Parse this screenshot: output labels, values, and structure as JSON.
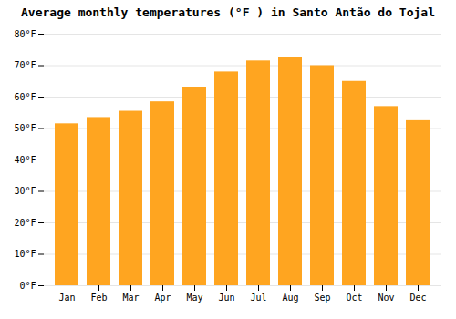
{
  "chart_data": {
    "type": "bar",
    "title": "Average monthly temperatures (°F ) in Santo Antão do Tojal",
    "categories": [
      "Jan",
      "Feb",
      "Mar",
      "Apr",
      "May",
      "Jun",
      "Jul",
      "Aug",
      "Sep",
      "Oct",
      "Nov",
      "Dec"
    ],
    "values": [
      51.5,
      53.5,
      55.5,
      58.5,
      63,
      68,
      71.5,
      72.5,
      70,
      65,
      57,
      52.5
    ],
    "color": "#FFA520",
    "ylim": [
      0,
      80
    ],
    "yticks": [
      {
        "value": 0,
        "label": "0°F"
      },
      {
        "value": 10,
        "label": "10°F"
      },
      {
        "value": 20,
        "label": "20°F"
      },
      {
        "value": 30,
        "label": "30°F"
      },
      {
        "value": 40,
        "label": "40°F"
      },
      {
        "value": 50,
        "label": "50°F"
      },
      {
        "value": 60,
        "label": "60°F"
      },
      {
        "value": 70,
        "label": "70°F"
      },
      {
        "value": 80,
        "label": "80°F"
      }
    ],
    "grid": true
  }
}
